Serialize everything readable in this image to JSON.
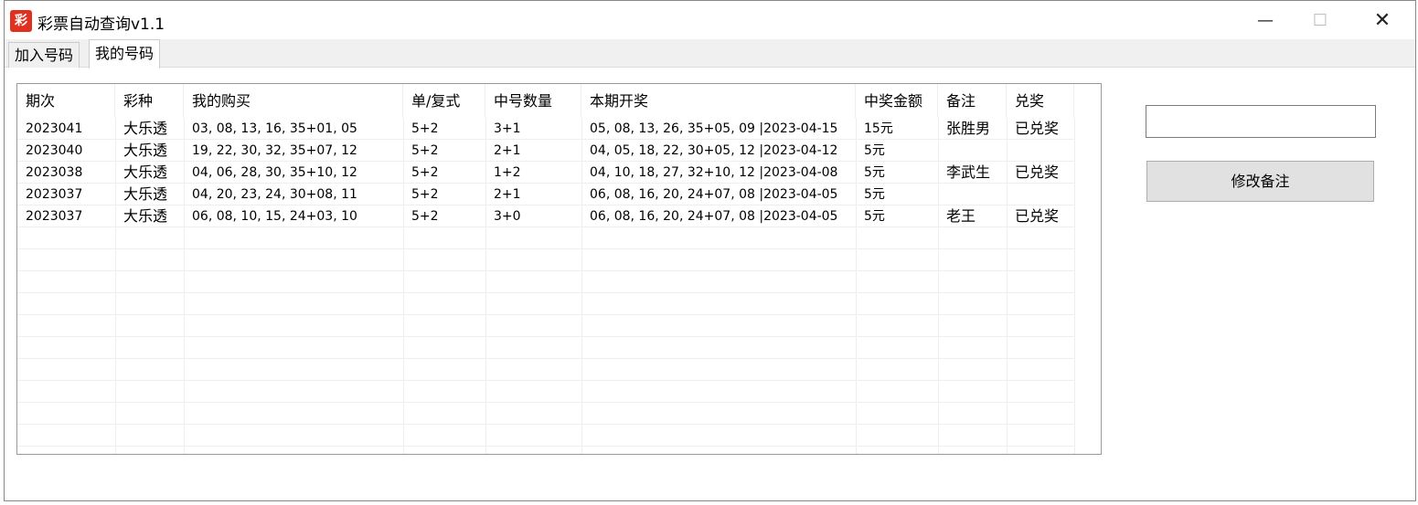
{
  "window": {
    "title": "彩票自动查询v1.1",
    "icon_text": "彩"
  },
  "tabs": [
    {
      "label": "加入号码",
      "active": false
    },
    {
      "label": "我的号码",
      "active": true
    }
  ],
  "table": {
    "columns": [
      "期次",
      "彩种",
      "我的购买",
      "单/复式",
      "中号数量",
      "本期开奖",
      "中奖金额",
      "备注",
      "兑奖"
    ],
    "rows": [
      [
        "2023041",
        "大乐透",
        "03, 08, 13, 16, 35+01, 05",
        "5+2",
        "3+1",
        "05, 08, 13, 26, 35+05, 09 |2023-04-15",
        "15元",
        "张胜男",
        "已兑奖"
      ],
      [
        "2023040",
        "大乐透",
        "19, 22, 30, 32, 35+07, 12",
        "5+2",
        "2+1",
        "04, 05, 18, 22, 30+05, 12 |2023-04-12",
        "5元",
        "",
        ""
      ],
      [
        "2023038",
        "大乐透",
        "04, 06, 28, 30, 35+10, 12",
        "5+2",
        "1+2",
        "04, 10, 18, 27, 32+10, 12 |2023-04-08",
        "5元",
        "李武生",
        "已兑奖"
      ],
      [
        "2023037",
        "大乐透",
        "04, 20, 23, 24, 30+08, 11",
        "5+2",
        "2+1",
        "06, 08, 16, 20, 24+07, 08 |2023-04-05",
        "5元",
        "",
        ""
      ],
      [
        "2023037",
        "大乐透",
        "06, 08, 10, 15, 24+03, 10",
        "5+2",
        "3+0",
        "06, 08, 16, 20, 24+07, 08 |2023-04-05",
        "5元",
        "老王",
        "已兑奖"
      ]
    ]
  },
  "remark_input": {
    "value": ""
  },
  "modify_button": {
    "label": "修改备注"
  }
}
